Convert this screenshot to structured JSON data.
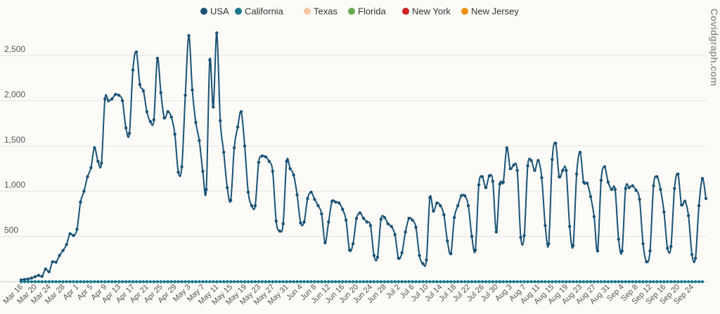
{
  "chart_data": {
    "type": "line",
    "title": "",
    "watermark": "Covidgraph.com",
    "y_ticks": [
      500,
      1000,
      1500,
      2000,
      2500
    ],
    "y_tick_labels": [
      "500",
      "1,000",
      "1,500",
      "2,000",
      "2,500"
    ],
    "ylim": [
      0,
      2850
    ],
    "grid": true,
    "legend_position": "top-center",
    "x_tick_labels": [
      "Mar 16",
      "Mar 20",
      "Mar 24",
      "Mar 28",
      "Apr 1",
      "Apr 5",
      "Apr 9",
      "Apr 13",
      "Apr 17",
      "Apr 21",
      "Apr 25",
      "Apr 29",
      "May 3",
      "May 7",
      "May 11",
      "May 15",
      "May 19",
      "May 23",
      "May 27",
      "May 31",
      "Jun 4",
      "Jun 8",
      "Jun 12",
      "Jun 16",
      "Jun 20",
      "Jun 24",
      "Jun 28",
      "Jul 2",
      "Jul 6",
      "Jul 10",
      "Jul 14",
      "Jul 18",
      "Jul 22",
      "Jul 26",
      "Jul 30",
      "Aug 3",
      "Aug 7",
      "Aug 11",
      "Aug 15",
      "Aug 19",
      "Aug 23",
      "Aug 27",
      "Aug 31",
      "Sep 4",
      "Sep 8",
      "Sep 12",
      "Sep 16",
      "Sep 20",
      "Sep 24"
    ],
    "series": [
      {
        "name": "USA",
        "color": "#1a5276",
        "values": [
          20,
          25,
          30,
          40,
          55,
          70,
          60,
          140,
          110,
          220,
          215,
          290,
          345,
          410,
          530,
          510,
          580,
          880,
          1000,
          1160,
          1260,
          1480,
          1330,
          1310,
          2020,
          2000,
          2020,
          2070,
          2060,
          2000,
          1700,
          1640,
          2340,
          2540,
          2180,
          2110,
          1880,
          1770,
          1790,
          2470,
          2090,
          1810,
          1880,
          1820,
          1630,
          1210,
          1270,
          2060,
          2720,
          2120,
          1760,
          1560,
          1220,
          1020,
          2450,
          1930,
          2750,
          1780,
          1430,
          1040,
          900,
          1480,
          1710,
          1880,
          1500,
          990,
          840,
          840,
          1320,
          1390,
          1380,
          1330,
          1220,
          670,
          560,
          640,
          1330,
          1250,
          1180,
          960,
          650,
          660,
          920,
          990,
          910,
          840,
          750,
          430,
          660,
          890,
          880,
          870,
          800,
          680,
          350,
          420,
          700,
          760,
          700,
          660,
          620,
          290,
          270,
          690,
          710,
          640,
          610,
          520,
          260,
          320,
          550,
          700,
          680,
          600,
          290,
          200,
          240,
          930,
          780,
          870,
          840,
          740,
          450,
          310,
          710,
          840,
          950,
          950,
          840,
          500,
          350,
          1070,
          1160,
          1040,
          1170,
          1110,
          550,
          1080,
          1100,
          1480,
          1250,
          1290,
          1230,
          490,
          510,
          1280,
          1340,
          1230,
          1340,
          1150,
          620,
          420,
          1350,
          1530,
          1160,
          1230,
          1230,
          610,
          400,
          1190,
          1430,
          1100,
          1090,
          940,
          720,
          340,
          1120,
          1270,
          1100,
          1020,
          1020,
          470,
          340,
          1030,
          1040,
          1060,
          1010,
          910,
          420,
          220,
          340,
          1060,
          1160,
          1020,
          770,
          370,
          390,
          1030,
          1190,
          850,
          890,
          730,
          300,
          260,
          840,
          1140,
          920
        ]
      },
      {
        "name": "California",
        "color": "#1b7a8c",
        "values": [
          0,
          0,
          0,
          0,
          0,
          0,
          0,
          0,
          0,
          0,
          0,
          0,
          0,
          0,
          0,
          0,
          0,
          0,
          0,
          0,
          0,
          0,
          0,
          0,
          0,
          0,
          0,
          0,
          0,
          0,
          0,
          0,
          0,
          0,
          0,
          0,
          0,
          0,
          0,
          0,
          0,
          0,
          0,
          0,
          0,
          0,
          0,
          0,
          0,
          0,
          0,
          0,
          0,
          0,
          0,
          0,
          0,
          0,
          0,
          0,
          0,
          0,
          0,
          0,
          0,
          0,
          0,
          0,
          0,
          0,
          0,
          0,
          0,
          0,
          0,
          0,
          0,
          0,
          0,
          0,
          0,
          0,
          0,
          0,
          0,
          0,
          0,
          0,
          0,
          0,
          0,
          0,
          0,
          0,
          0,
          0,
          0,
          0,
          0,
          0,
          0,
          0,
          0,
          0,
          0,
          0,
          0,
          0,
          0,
          0,
          0,
          0,
          0,
          0,
          0,
          0,
          0,
          0,
          0,
          0,
          0,
          0,
          0,
          0,
          0,
          0,
          0,
          0,
          0,
          0,
          0,
          0,
          0,
          0,
          0,
          0,
          0,
          0,
          0,
          0,
          0,
          0,
          0,
          0,
          0,
          0,
          0,
          0,
          0,
          0,
          0,
          0,
          0,
          0,
          0,
          0,
          0,
          0,
          0,
          0,
          0,
          0,
          0,
          0,
          0,
          0,
          0,
          0,
          0,
          0,
          0,
          0,
          0,
          0,
          0,
          0,
          0,
          0,
          0,
          0,
          0,
          0,
          0,
          0,
          0,
          0,
          0,
          0,
          0,
          0,
          0,
          0,
          0,
          0,
          0,
          0
        ]
      },
      {
        "name": "Texas",
        "color": "#f5c6a5",
        "values": []
      },
      {
        "name": "Florida",
        "color": "#6aa84f",
        "values": []
      },
      {
        "name": "New York",
        "color": "#cc2222",
        "values": []
      },
      {
        "name": "New Jersey",
        "color": "#f0900a",
        "values": []
      }
    ]
  }
}
